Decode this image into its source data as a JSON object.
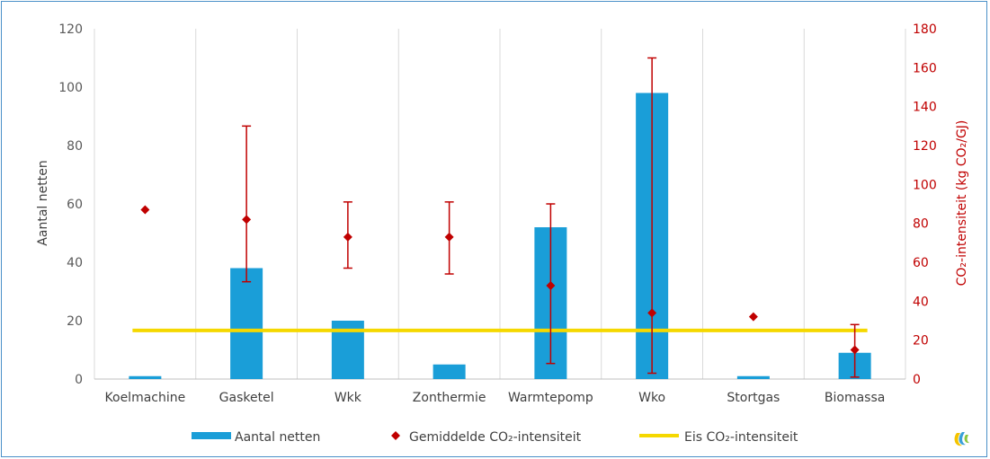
{
  "chart_data": {
    "type": "bar",
    "categories": [
      "Koelmachine",
      "Gasketel",
      "Wkk",
      "Zonthermie",
      "Warmtepomp",
      "Wko",
      "Stortgas",
      "Biomassa"
    ],
    "y_left": {
      "label": "Aantal netten",
      "lim": [
        0,
        120
      ],
      "ticks": [
        "0",
        "20",
        "40",
        "60",
        "80",
        "100",
        "120"
      ]
    },
    "y_right": {
      "label": "CO₂-intensiteit (kg CO₂/GJ)",
      "lim": [
        0,
        180
      ],
      "ticks": [
        "0",
        "20",
        "40",
        "60",
        "80",
        "100",
        "120",
        "140",
        "160",
        "180"
      ]
    },
    "series": [
      {
        "name": "Aantal netten",
        "type": "bar",
        "axis": "left",
        "color": "#1a9ed8",
        "values": [
          1,
          38,
          20,
          5,
          52,
          98,
          1,
          9
        ]
      },
      {
        "name": "Gemiddelde CO₂-intensiteit",
        "type": "scatter",
        "axis": "right",
        "color": "#c00000",
        "values": [
          87,
          82,
          73,
          73,
          48,
          34,
          32,
          15
        ],
        "error_low": [
          null,
          50,
          57,
          54,
          8,
          3,
          null,
          1
        ],
        "error_high": [
          null,
          130,
          91,
          91,
          90,
          165,
          null,
          28
        ]
      },
      {
        "name": "Eis CO₂-intensiteit",
        "type": "line",
        "axis": "right",
        "color": "#f5d800",
        "value": 25
      }
    ],
    "grid": "vertical",
    "legend": "bottom"
  }
}
